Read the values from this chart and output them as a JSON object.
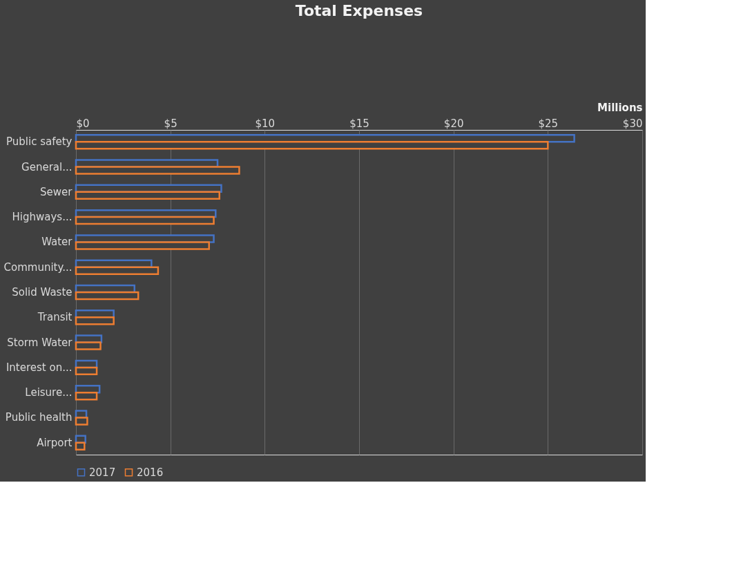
{
  "chart_data": {
    "type": "bar",
    "orientation": "horizontal",
    "title": "Total Expenses",
    "xlabel": "Millions",
    "categories": [
      "Public safety",
      "General...",
      "Sewer",
      "Highways...",
      "Water",
      "Community...",
      "Solid Waste",
      "Transit",
      "Storm Water",
      "Interest on...",
      "Leisure...",
      "Public health",
      "Airport"
    ],
    "series": [
      {
        "name": "2017",
        "color": "#4472c4",
        "values": [
          26.4,
          7.5,
          7.7,
          7.4,
          7.3,
          4.0,
          3.1,
          2.0,
          1.35,
          1.1,
          1.25,
          0.55,
          0.5
        ]
      },
      {
        "name": "2016",
        "color": "#ed7d31",
        "values": [
          25.0,
          8.65,
          7.6,
          7.3,
          7.05,
          4.35,
          3.3,
          2.0,
          1.3,
          1.1,
          1.1,
          0.6,
          0.45
        ]
      }
    ],
    "xlim": [
      0,
      30
    ],
    "xticks": [
      {
        "value": 0,
        "label": "$0"
      },
      {
        "value": 5,
        "label": "$5"
      },
      {
        "value": 10,
        "label": "$10"
      },
      {
        "value": 15,
        "label": "$15"
      },
      {
        "value": 20,
        "label": "$20"
      },
      {
        "value": 25,
        "label": "$25"
      },
      {
        "value": 30,
        "label": "$30"
      }
    ],
    "grid": "x",
    "legend": "bottom"
  }
}
